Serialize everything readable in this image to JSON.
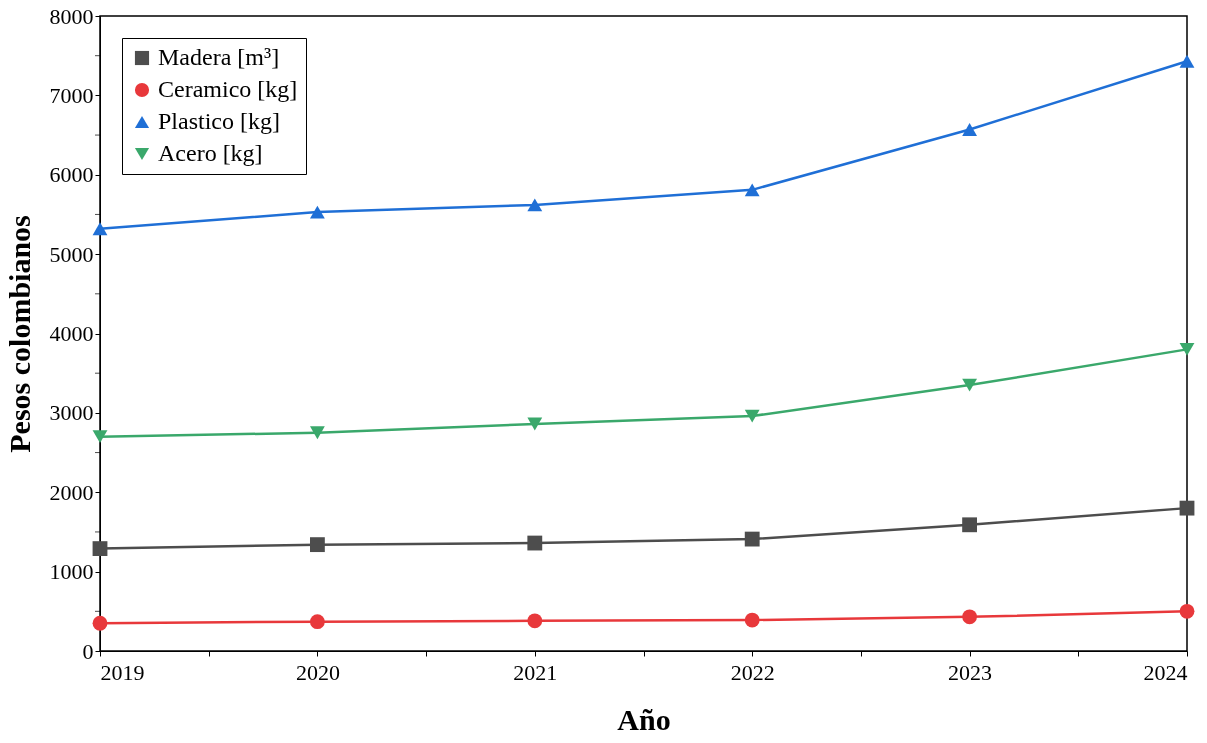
{
  "chart_data": {
    "type": "line",
    "xlabel": "Año",
    "ylabel": "Pesos colombianos",
    "x": [
      2019,
      2020,
      2021,
      2022,
      2023,
      2024
    ],
    "series": [
      {
        "name": "Madera [m³]",
        "color": "#4d4d4d",
        "marker": "square",
        "values": [
          1290,
          1340,
          1360,
          1410,
          1590,
          1800
        ]
      },
      {
        "name": "Ceramico [kg]",
        "color": "#e8383b",
        "marker": "circle",
        "values": [
          350,
          370,
          380,
          390,
          430,
          500
        ]
      },
      {
        "name": "Plastico [kg]",
        "color": "#1f6fd6",
        "marker": "triangle",
        "values": [
          5320,
          5530,
          5620,
          5810,
          6570,
          7430
        ]
      },
      {
        "name": "Acero [kg]",
        "color": "#3aa86b",
        "marker": "triangle_down",
        "values": [
          2700,
          2750,
          2860,
          2960,
          3350,
          3800
        ]
      }
    ],
    "xlim": [
      2019,
      2024
    ],
    "xticks": [
      2019,
      {
        "value": 2019.5,
        "label": null
      },
      2020,
      {
        "value": 2020.5,
        "label": null
      },
      2021,
      {
        "value": 2021.5,
        "label": null
      },
      2022,
      {
        "value": 2022.5,
        "label": null
      },
      2023,
      {
        "value": 2023.5,
        "label": null
      },
      2024
    ],
    "ylim": [
      0,
      8000
    ],
    "yticks": [
      0,
      {
        "value": 500,
        "label": null
      },
      1000,
      {
        "value": 1500,
        "label": null
      },
      2000,
      {
        "value": 2500,
        "label": null
      },
      3000,
      {
        "value": 3500,
        "label": null
      },
      4000,
      {
        "value": 4500,
        "label": null
      },
      5000,
      {
        "value": 5500,
        "label": null
      },
      6000,
      {
        "value": 6500,
        "label": null
      },
      7000,
      {
        "value": 7500,
        "label": null
      },
      8000
    ],
    "grid": false,
    "legend": "top left",
    "line_style": "solid"
  }
}
